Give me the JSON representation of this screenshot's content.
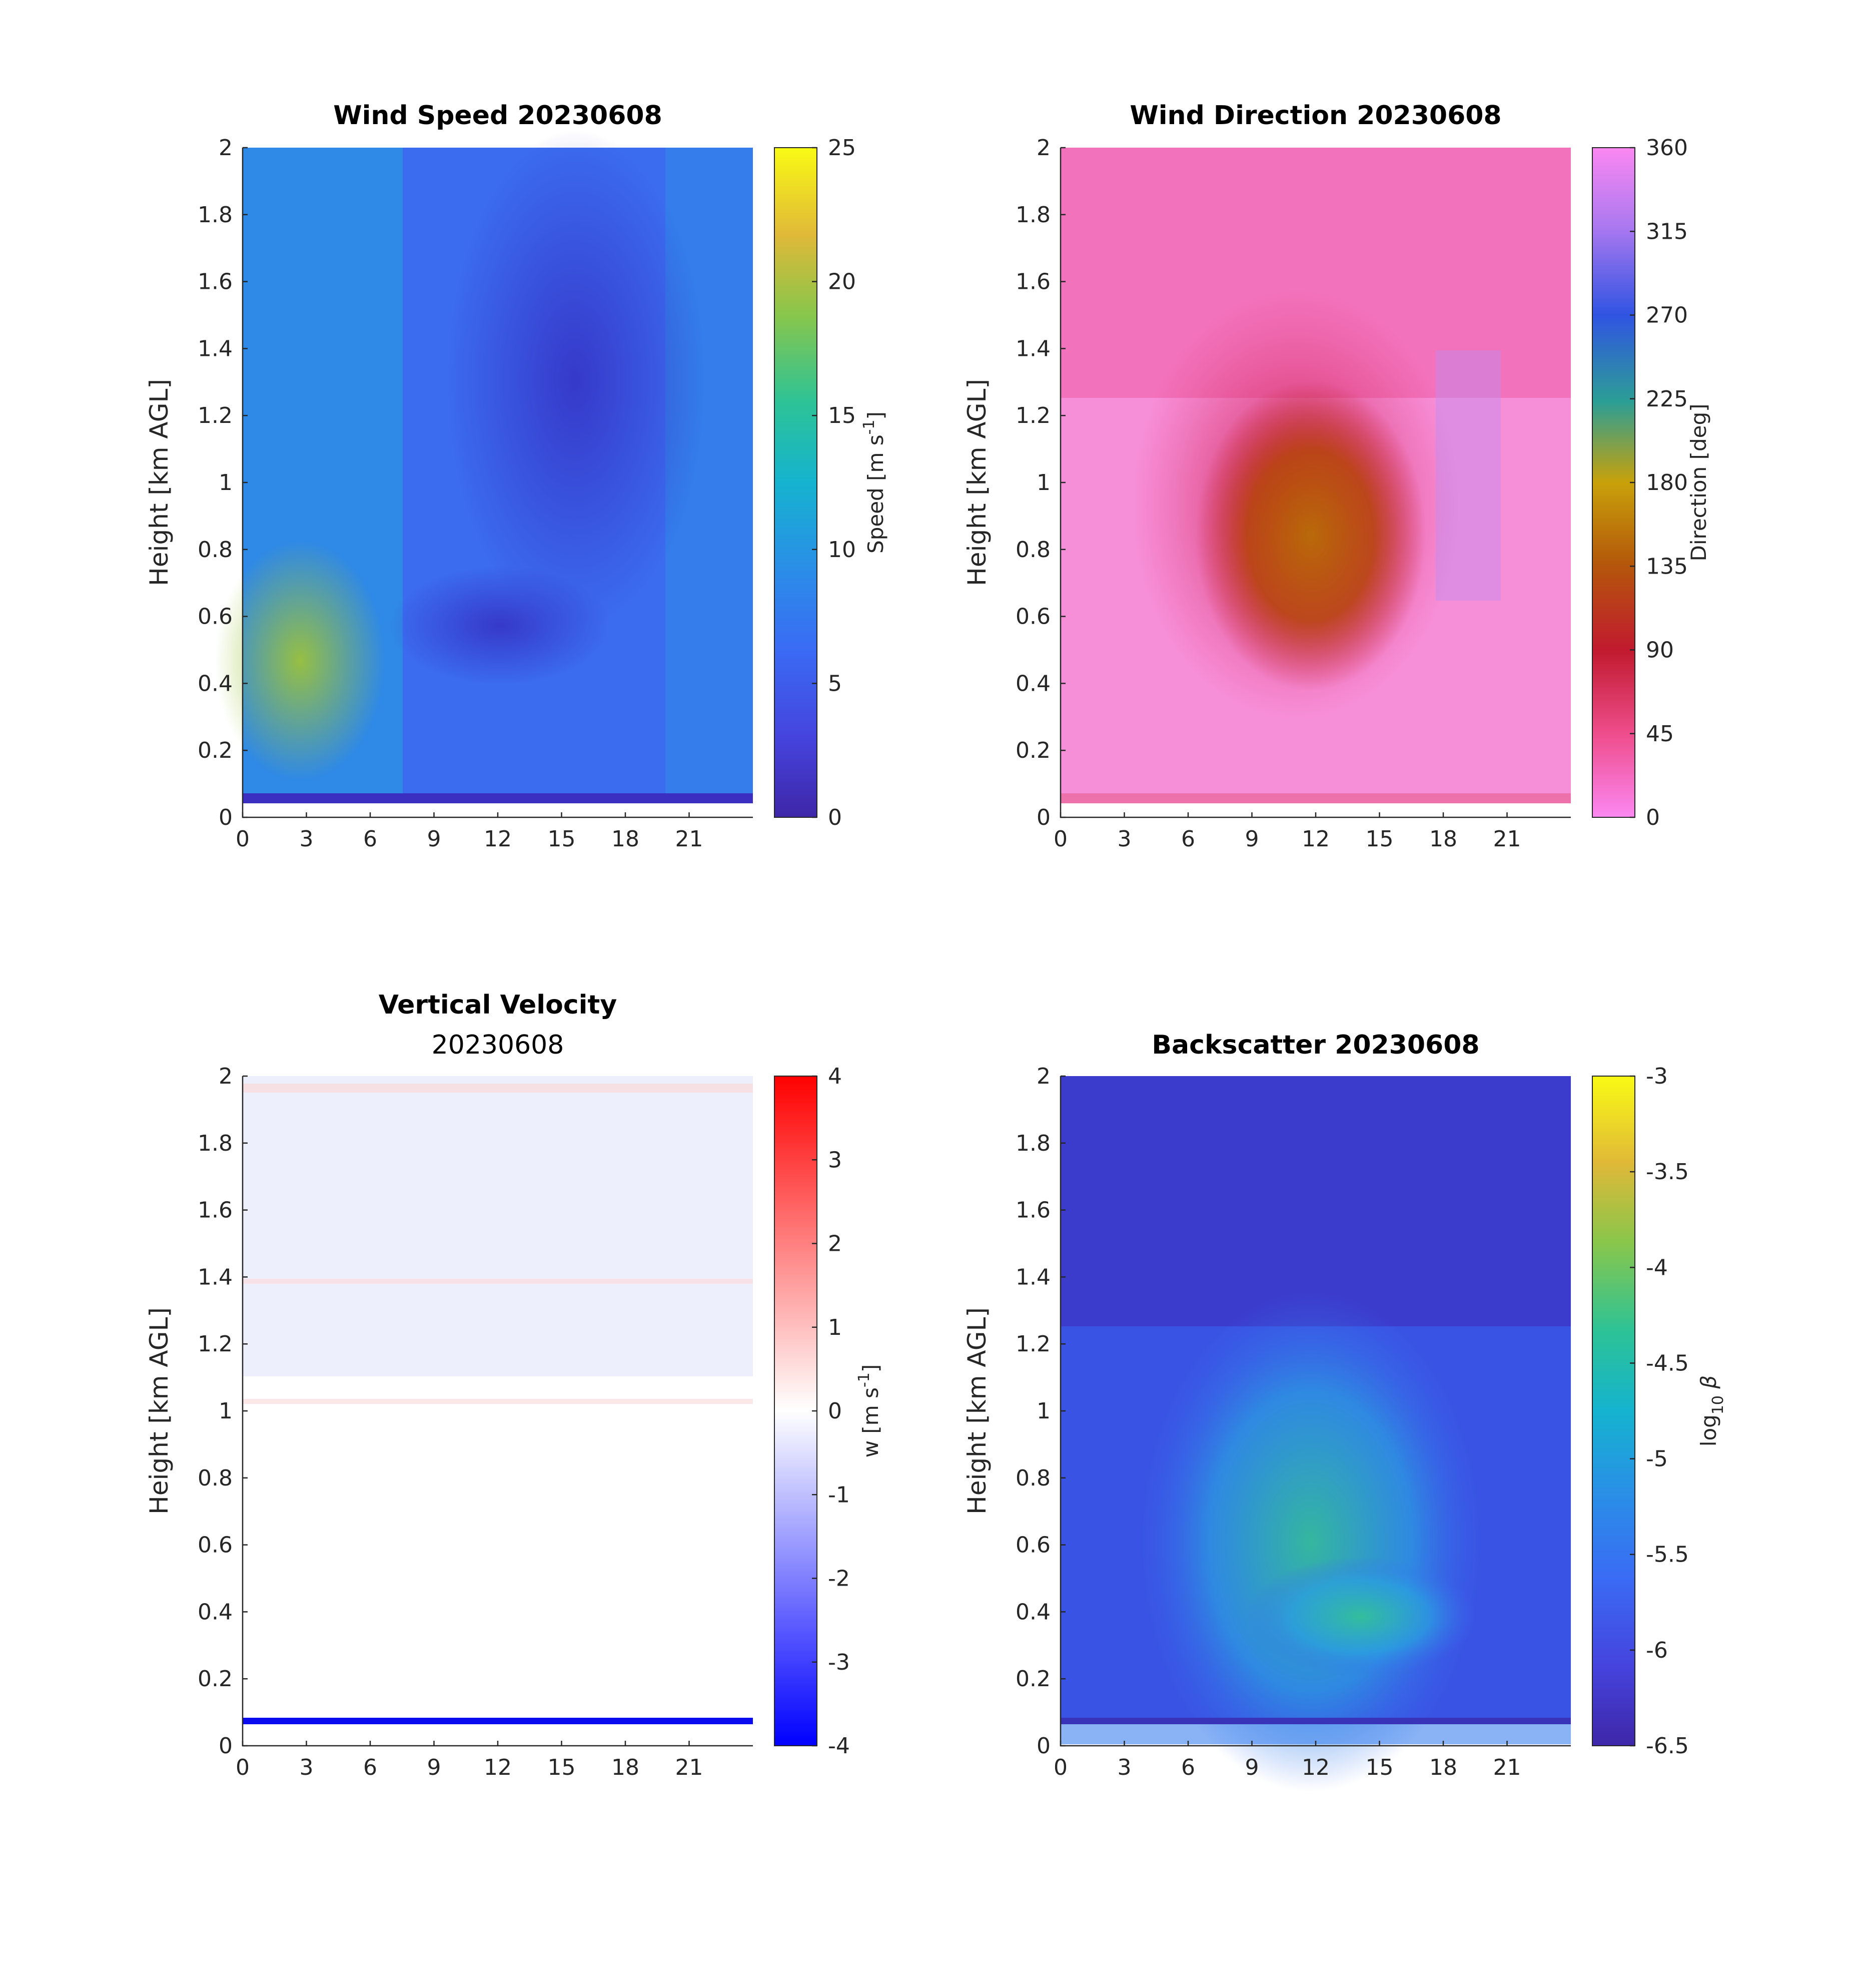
{
  "chart_data": [
    {
      "type": "heatmap",
      "title": "Wind Speed 20230608",
      "subtitle": "",
      "xlabel": "",
      "ylabel": "Height [km AGL]",
      "x_ticks": [
        "0",
        "3",
        "6",
        "9",
        "12",
        "15",
        "18",
        "21"
      ],
      "y_ticks": [
        "0",
        "0.2",
        "0.4",
        "0.6",
        "0.8",
        "1",
        "1.2",
        "1.4",
        "1.6",
        "1.8",
        "2"
      ],
      "xlim": [
        0,
        24
      ],
      "ylim": [
        0,
        2
      ],
      "colorbar": {
        "label_main": "Speed [m s",
        "label_sup": "-1",
        "label_end": "]",
        "ticks": [
          "0",
          "5",
          "10",
          "15",
          "20",
          "25"
        ],
        "range": [
          0,
          25
        ],
        "colormap": "parula"
      },
      "dominant_colors": [
        "#3b6af0",
        "#2f8fe8",
        "#3d3bd1",
        "#8cc43a"
      ]
    },
    {
      "type": "heatmap",
      "title": "Wind Direction 20230608",
      "subtitle": "",
      "xlabel": "",
      "ylabel": "Height [km AGL]",
      "x_ticks": [
        "0",
        "3",
        "6",
        "9",
        "12",
        "15",
        "18",
        "21"
      ],
      "y_ticks": [
        "0",
        "0.2",
        "0.4",
        "0.6",
        "0.8",
        "1",
        "1.2",
        "1.4",
        "1.6",
        "1.8",
        "2"
      ],
      "xlim": [
        0,
        24
      ],
      "ylim": [
        0,
        2
      ],
      "colorbar": {
        "label_main": "Direction [deg]",
        "label_sup": "",
        "label_end": "",
        "ticks": [
          "0",
          "45",
          "90",
          "135",
          "180",
          "225",
          "270",
          "315",
          "360"
        ],
        "range": [
          0,
          360
        ],
        "colormap": "phase"
      },
      "dominant_colors": [
        "#f98fd9",
        "#ee5aa6",
        "#c31b2f",
        "#b15a0a"
      ]
    },
    {
      "type": "heatmap",
      "title": "Vertical Velocity",
      "subtitle": "20230608",
      "xlabel": "",
      "ylabel": "Height [km AGL]",
      "x_ticks": [
        "0",
        "3",
        "6",
        "9",
        "12",
        "15",
        "18",
        "21"
      ],
      "y_ticks": [
        "0",
        "0.2",
        "0.4",
        "0.6",
        "0.8",
        "1",
        "1.2",
        "1.4",
        "1.6",
        "1.8",
        "2"
      ],
      "xlim": [
        0,
        24
      ],
      "ylim": [
        0,
        2
      ],
      "colorbar": {
        "label_main": "w [m s",
        "label_sup": "-1",
        "label_end": "]",
        "ticks": [
          "-4",
          "-3",
          "-2",
          "-1",
          "0",
          "1",
          "2",
          "3",
          "4"
        ],
        "range": [
          -4,
          4
        ],
        "colormap": "blue-white-red"
      },
      "dominant_colors": [
        "#ffffff",
        "#e6e8fb",
        "#fbe4e4",
        "#1414f0"
      ]
    },
    {
      "type": "heatmap",
      "title": "Backscatter 20230608",
      "subtitle": "",
      "xlabel": "",
      "ylabel": "Height [km AGL]",
      "x_ticks": [
        "0",
        "3",
        "6",
        "9",
        "12",
        "15",
        "18",
        "21"
      ],
      "y_ticks": [
        "0",
        "0.2",
        "0.4",
        "0.6",
        "0.8",
        "1",
        "1.2",
        "1.4",
        "1.6",
        "1.8",
        "2"
      ],
      "xlim": [
        0,
        24
      ],
      "ylim": [
        0,
        2
      ],
      "colorbar": {
        "label_main": "log",
        "label_sub": "10",
        "label_end": " β",
        "ticks": [
          "-6.5",
          "-6",
          "-5.5",
          "-5",
          "-4.5",
          "-4",
          "-3.5",
          "-3"
        ],
        "range": [
          -6.5,
          -3
        ],
        "colormap": "parula"
      },
      "dominant_colors": [
        "#3c37c8",
        "#3a52e6",
        "#2f9de6",
        "#35c08c"
      ]
    }
  ]
}
